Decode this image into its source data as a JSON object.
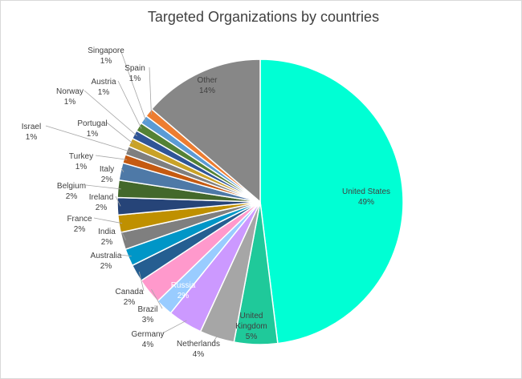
{
  "chart_data": {
    "type": "pie",
    "title": "Targeted Organizations by countries",
    "slices": [
      {
        "label": "United States",
        "value": 49,
        "value_text": "49%",
        "color": "#00ffd4",
        "text_color": "#404040"
      },
      {
        "label": "United Kingdom",
        "value": 5,
        "value_text": "5%",
        "color": "#1fc99a",
        "text_color": "#404040"
      },
      {
        "label": "Netherlands",
        "value": 4,
        "value_text": "4%",
        "color": "#a6a6a6",
        "text_color": "#404040"
      },
      {
        "label": "Germany",
        "value": 4,
        "value_text": "4%",
        "color": "#cc99ff",
        "text_color": "#404040"
      },
      {
        "label": "Russia",
        "value": 2,
        "value_text": "2%",
        "color": "#99ccff",
        "text_color": "#ffffff"
      },
      {
        "label": "Brazil",
        "value": 3,
        "value_text": "3%",
        "color": "#ff99cc",
        "text_color": "#404040"
      },
      {
        "label": "Canada",
        "value": 2,
        "value_text": "2%",
        "color": "#255e91",
        "text_color": "#404040"
      },
      {
        "label": "Australia",
        "value": 2,
        "value_text": "2%",
        "color": "#0096c7",
        "text_color": "#404040"
      },
      {
        "label": "India",
        "value": 2,
        "value_text": "2%",
        "color": "#7f7f7f",
        "text_color": "#404040"
      },
      {
        "label": "France",
        "value": 2,
        "value_text": "2%",
        "color": "#bf9000",
        "text_color": "#404040"
      },
      {
        "label": "Ireland",
        "value": 2,
        "value_text": "2%",
        "color": "#264478",
        "text_color": "#404040"
      },
      {
        "label": "Belgium",
        "value": 2,
        "value_text": "2%",
        "color": "#43682b",
        "text_color": "#404040"
      },
      {
        "label": "Italy",
        "value": 2,
        "value_text": "2%",
        "color": "#4e79a7",
        "text_color": "#404040"
      },
      {
        "label": "Turkey",
        "value": 1,
        "value_text": "1%",
        "color": "#c55a11",
        "text_color": "#404040"
      },
      {
        "label": "Israel",
        "value": 1,
        "value_text": "1%",
        "color": "#7f7f7f",
        "text_color": "#404040"
      },
      {
        "label": "Portugal",
        "value": 1,
        "value_text": "1%",
        "color": "#c9a227",
        "text_color": "#404040"
      },
      {
        "label": "Norway",
        "value": 1,
        "value_text": "1%",
        "color": "#2f5597",
        "text_color": "#404040"
      },
      {
        "label": "Austria",
        "value": 1,
        "value_text": "1%",
        "color": "#548235",
        "text_color": "#404040"
      },
      {
        "label": "Singapore",
        "value": 1,
        "value_text": "1%",
        "color": "#5b9bd5",
        "text_color": "#404040"
      },
      {
        "label": "Spain",
        "value": 1,
        "value_text": "1%",
        "color": "#ed7d31",
        "text_color": "#404040"
      },
      {
        "label": "Other",
        "value": 14,
        "value_text": "14%",
        "color": "#878787",
        "text_color": "#404040"
      }
    ],
    "label_positions": "outside with leader lines for small slices; inside for large slices"
  }
}
